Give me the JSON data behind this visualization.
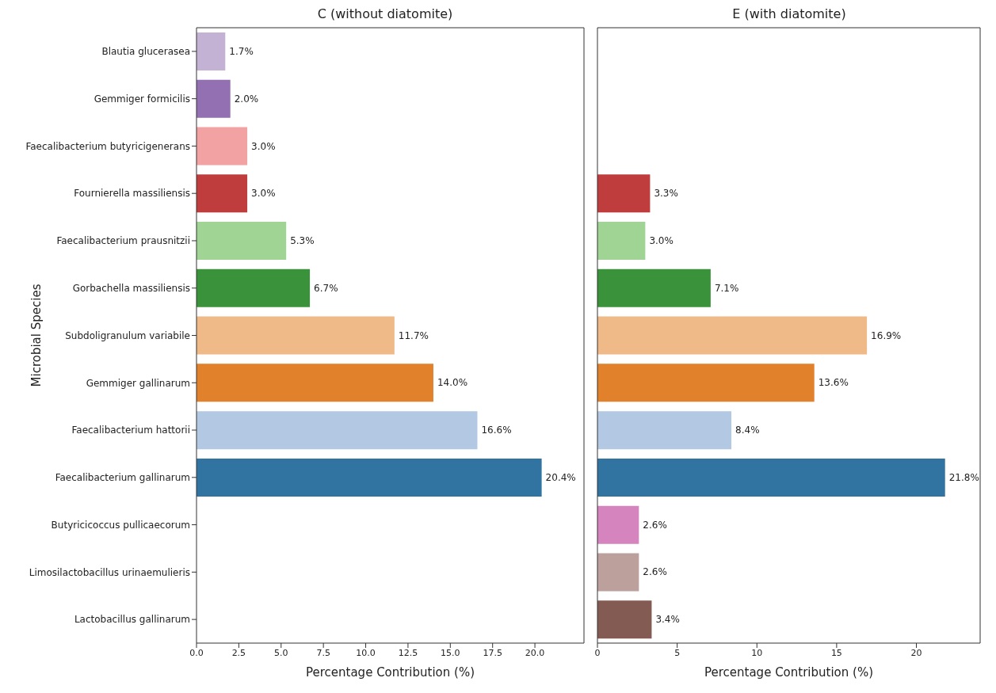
{
  "chart_data": [
    {
      "type": "bar",
      "orientation": "horizontal",
      "title": "C (without diatomite)",
      "xlabel": "Percentage Contribution (%)",
      "ylabel": "Microbial Species",
      "categories": [
        "Blautia glucerasea",
        "Gemmiger formicilis",
        "Faecalibacterium butyricigenerans",
        "Fournierella massiliensis",
        "Faecalibacterium prausnitzii",
        "Gorbachella massiliensis",
        "Subdoligranulum variabile",
        "Gemmiger gallinarum",
        "Faecalibacterium hattorii",
        "Faecalibacterium gallinarum",
        "Butyricicoccus pullicaecorum",
        "Limosilactobacillus urinaemulieris",
        "Lactobacillus gallinarum"
      ],
      "values": [
        1.7,
        2.0,
        3.0,
        3.0,
        5.3,
        6.7,
        11.7,
        14.0,
        16.6,
        20.4,
        null,
        null,
        null
      ],
      "value_labels": [
        "1.7%",
        "2.0%",
        "3.0%",
        "3.0%",
        "5.3%",
        "6.7%",
        "11.7%",
        "14.0%",
        "16.6%",
        "20.4%",
        null,
        null,
        null
      ],
      "colors": [
        "#c4b2d4",
        "#9370b2",
        "#f2a2a2",
        "#c03d3e",
        "#a0d494",
        "#3a923a",
        "#efb988",
        "#e1812c",
        "#b3c8e2",
        "#3274a1",
        null,
        null,
        null
      ],
      "xlim": [
        0,
        22.9
      ],
      "xticks": [
        {
          "value": 0,
          "label": "0.0"
        },
        {
          "value": 2.5,
          "label": "2.5"
        },
        {
          "value": 5,
          "label": "5.0"
        },
        {
          "value": 7.5,
          "label": "7.5"
        },
        {
          "value": 10,
          "label": "10.0"
        },
        {
          "value": 12.5,
          "label": "12.5"
        },
        {
          "value": 15,
          "label": "15.0"
        },
        {
          "value": 17.5,
          "label": "17.5"
        },
        {
          "value": 20,
          "label": "20.0"
        }
      ],
      "grid": false,
      "legend": false
    },
    {
      "type": "bar",
      "orientation": "horizontal",
      "title": "E (with diatomite)",
      "xlabel": "Percentage Contribution (%)",
      "categories": [
        null,
        null,
        null,
        null,
        null,
        null,
        null,
        null,
        null,
        null,
        null,
        null,
        null
      ],
      "values": [
        null,
        null,
        null,
        3.3,
        3.0,
        7.1,
        16.9,
        13.6,
        8.4,
        21.8,
        2.6,
        2.6,
        3.4
      ],
      "value_labels": [
        null,
        null,
        null,
        "3.3%",
        "3.0%",
        "7.1%",
        "16.9%",
        "13.6%",
        "8.4%",
        "21.8%",
        "2.6%",
        "2.6%",
        "3.4%"
      ],
      "colors": [
        null,
        null,
        null,
        "#c03d3e",
        "#a0d494",
        "#3a923a",
        "#efb988",
        "#e1812c",
        "#b3c8e2",
        "#3274a1",
        "#d684bd",
        "#bca09b",
        "#845b53"
      ],
      "xlim": [
        0,
        24
      ],
      "xticks": [
        0,
        5,
        10,
        15,
        20
      ],
      "tick_labels": "x",
      "grid": false,
      "legend": false
    }
  ]
}
